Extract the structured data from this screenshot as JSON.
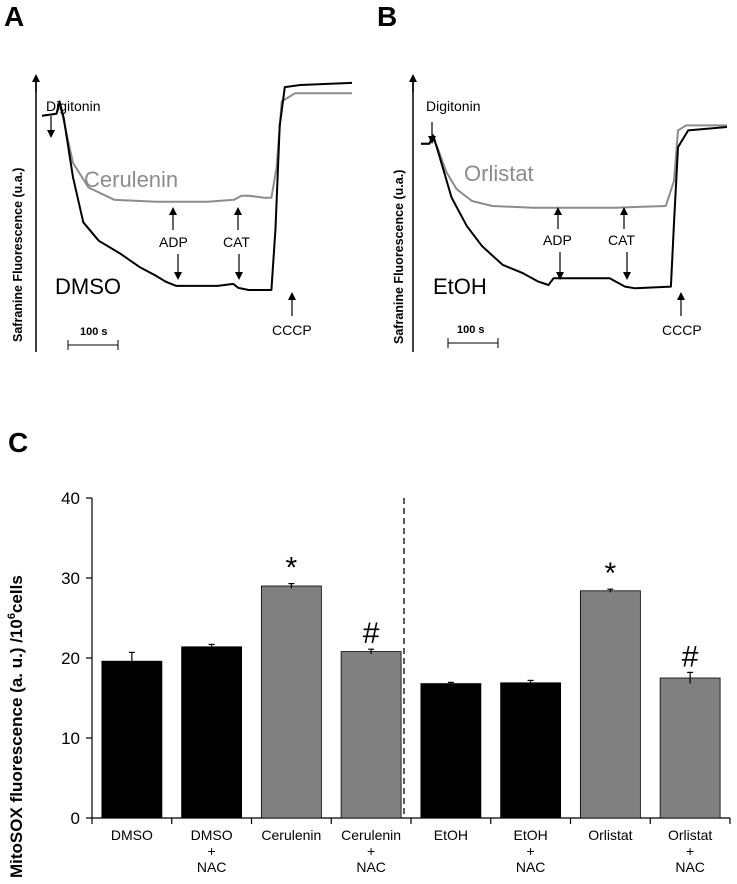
{
  "chart_data": [
    {
      "panel": "A",
      "type": "line",
      "ylabel": "Safranine Fluorescence (u.a.)",
      "scale_bar": "100 s",
      "series": [
        {
          "name": "Cerulenin",
          "color": "#8c8c8c",
          "points": [
            [
              0,
              85
            ],
            [
              14,
              86
            ],
            [
              17,
              90
            ],
            [
              20,
              85
            ],
            [
              30,
              62
            ],
            [
              45,
              50
            ],
            [
              70,
              44
            ],
            [
              110,
              43
            ],
            [
              160,
              43
            ],
            [
              186,
              44
            ],
            [
              193,
              46
            ],
            [
              200,
              46
            ],
            [
              215,
              45
            ],
            [
              222,
              45
            ],
            [
              227,
              60
            ],
            [
              232,
              92
            ],
            [
              245,
              96
            ],
            [
              300,
              96
            ]
          ]
        },
        {
          "name": "DMSO",
          "color": "#000000",
          "points": [
            [
              0,
              85
            ],
            [
              14,
              86
            ],
            [
              17,
              92
            ],
            [
              21,
              84
            ],
            [
              30,
              55
            ],
            [
              40,
              33
            ],
            [
              55,
              24
            ],
            [
              75,
              18
            ],
            [
              95,
              11
            ],
            [
              110,
              7
            ],
            [
              120,
              4
            ],
            [
              130,
              2
            ],
            [
              170,
              2
            ],
            [
              185,
              3
            ],
            [
              190,
              1
            ],
            [
              200,
              0
            ],
            [
              222,
              0
            ],
            [
              226,
              30
            ],
            [
              230,
              80
            ],
            [
              235,
              99
            ],
            [
              250,
              100
            ],
            [
              300,
              101
            ]
          ]
        }
      ],
      "annotations": [
        "Digitonin",
        "ADP",
        "CAT",
        "CCCP"
      ]
    },
    {
      "panel": "B",
      "type": "line",
      "ylabel": "Safranine Fluorescence (u.a.)",
      "scale_bar": "100 s",
      "series": [
        {
          "name": "Orlistat",
          "color": "#8c8c8c",
          "points": [
            [
              0,
              87
            ],
            [
              8,
              87
            ],
            [
              12,
              90
            ],
            [
              16,
              85
            ],
            [
              25,
              70
            ],
            [
              35,
              60
            ],
            [
              50,
              53
            ],
            [
              70,
              50
            ],
            [
              110,
              49
            ],
            [
              190,
              49
            ],
            [
              240,
              50
            ],
            [
              248,
              65
            ],
            [
              252,
              95
            ],
            [
              260,
              98
            ],
            [
              300,
              98
            ]
          ]
        },
        {
          "name": "EtOH",
          "color": "#000000",
          "points": [
            [
              0,
              87
            ],
            [
              8,
              87
            ],
            [
              12,
              92
            ],
            [
              16,
              84
            ],
            [
              30,
              55
            ],
            [
              45,
              38
            ],
            [
              60,
              26
            ],
            [
              80,
              15
            ],
            [
              100,
              10
            ],
            [
              115,
              5
            ],
            [
              125,
              3
            ],
            [
              130,
              7
            ],
            [
              150,
              7
            ],
            [
              185,
              7
            ],
            [
              200,
              2
            ],
            [
              210,
              1
            ],
            [
              245,
              2
            ],
            [
              248,
              40
            ],
            [
              252,
              85
            ],
            [
              262,
              95
            ],
            [
              300,
              97
            ]
          ]
        }
      ],
      "annotations": [
        "Digitonin",
        "ADP",
        "CAT",
        "CCCP"
      ]
    },
    {
      "panel": "C",
      "type": "bar",
      "ylabel": "MitoSOX fluorescence (a. u.) /10^6 cells",
      "ylabel_main": "MitoSOX fluorescence (a. u.) /10",
      "ylabel_sup": "6",
      "ylabel_tail": "cells",
      "ylim": [
        0,
        40
      ],
      "yticks": [
        "0",
        "10",
        "20",
        "30",
        "40"
      ],
      "categories": [
        [
          "DMSO"
        ],
        [
          "DMSO",
          "+",
          "NAC"
        ],
        [
          "Cerulenin"
        ],
        [
          "Cerulenin",
          "+",
          "NAC"
        ],
        [
          "EtOH"
        ],
        [
          "EtOH",
          "+",
          "NAC"
        ],
        [
          "Orlistat"
        ],
        [
          "Orlistat",
          "+",
          "NAC"
        ]
      ],
      "values": [
        19.6,
        21.4,
        29.0,
        20.8,
        16.8,
        16.9,
        28.4,
        17.5
      ],
      "errors": [
        1.1,
        0.3,
        0.3,
        0.3,
        0.15,
        0.3,
        0.2,
        0.7
      ],
      "colors": [
        "#000000",
        "#000000",
        "#808080",
        "#808080",
        "#000000",
        "#000000",
        "#808080",
        "#808080"
      ],
      "significance": [
        "",
        "",
        "*",
        "#",
        "",
        "",
        "*",
        "#"
      ]
    }
  ],
  "labels": {
    "panel_a": "A",
    "panel_b": "B",
    "panel_c": "C",
    "digitonin": "Digitonin",
    "adp": "ADP",
    "cat": "CAT",
    "cccp": "CCCP",
    "scale": "100 s",
    "cerulenin": "Cerulenin",
    "dmso": "DMSO",
    "orlistat": "Orlistat",
    "etoh": "EtOH",
    "ylabel_ab": "Safranine Fluorescence (u.a.)"
  },
  "colors": {
    "gray_trace": "#8c8c8c",
    "black_trace": "#000000",
    "gray_bar": "#808080"
  }
}
